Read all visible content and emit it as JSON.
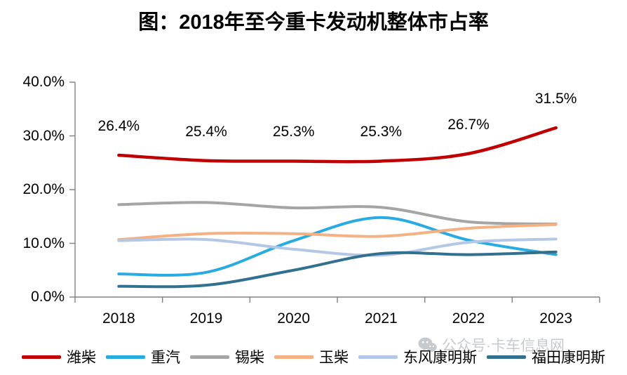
{
  "title": "图：2018年至今重卡发动机整体市占率",
  "watermark": {
    "icon": "wechat-icon",
    "text": "公众号·卡车信息网"
  },
  "chart_data": {
    "type": "line",
    "title": "图：2018年至今重卡发动机整体市占率",
    "x": [
      "2018",
      "2019",
      "2020",
      "2021",
      "2022",
      "2023"
    ],
    "xlabel": "",
    "ylabel": "",
    "ylim": [
      0,
      40
    ],
    "y_ticks": [
      {
        "value": 0,
        "label": "0.0%"
      },
      {
        "value": 10,
        "label": "10.0%"
      },
      {
        "value": 20,
        "label": "20.0%"
      },
      {
        "value": 30,
        "label": "30.0%"
      },
      {
        "value": 40,
        "label": "40.0%"
      }
    ],
    "grid": false,
    "legend_position": "bottom",
    "axis_color": "#808080",
    "line_smoothing": true,
    "series": [
      {
        "name": "潍柴",
        "color": "#C00000",
        "values": [
          26.4,
          25.4,
          25.3,
          25.3,
          26.7,
          31.5
        ],
        "point_labels": [
          "26.4%",
          "25.4%",
          "25.3%",
          "25.3%",
          "26.7%",
          "31.5%"
        ]
      },
      {
        "name": "重汽",
        "color": "#29ABE2",
        "values": [
          4.3,
          4.6,
          10.5,
          14.8,
          10.6,
          7.9
        ]
      },
      {
        "name": "锡柴",
        "color": "#A5A5A5",
        "values": [
          17.2,
          17.6,
          16.6,
          16.7,
          14.0,
          13.6
        ]
      },
      {
        "name": "玉柴",
        "color": "#F4B183",
        "values": [
          10.7,
          11.8,
          11.8,
          11.3,
          12.8,
          13.5
        ]
      },
      {
        "name": "东风康明斯",
        "color": "#B4C7E7",
        "values": [
          10.5,
          10.7,
          8.9,
          7.8,
          10.2,
          10.8
        ]
      },
      {
        "name": "福田康明斯",
        "color": "#31708F",
        "values": [
          2.0,
          2.2,
          5.0,
          8.1,
          7.9,
          8.4
        ]
      }
    ]
  }
}
